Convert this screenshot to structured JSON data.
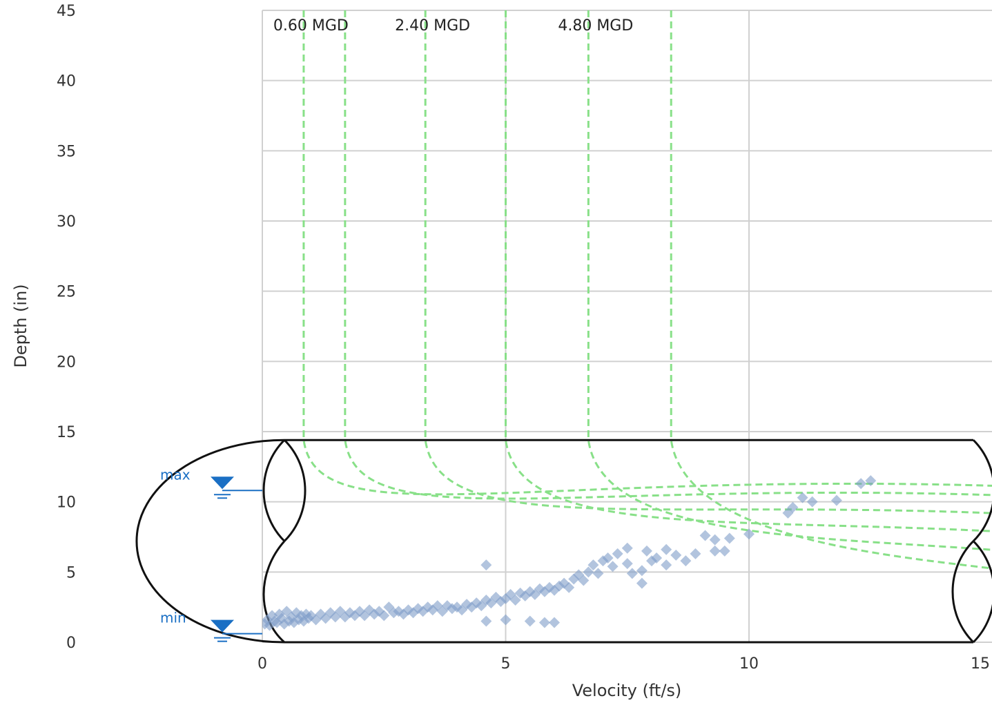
{
  "chart_data": {
    "type": "scatter",
    "title": "",
    "xlabel": "Velocity (ft/s)",
    "ylabel": "Depth (in)",
    "xlim": [
      0,
      15
    ],
    "ylim": [
      0,
      45
    ],
    "x_ticks": [
      "0",
      "5",
      "10",
      "15"
    ],
    "y_ticks": [
      "0",
      "5",
      "10",
      "15",
      "20",
      "25",
      "30",
      "35",
      "40",
      "45"
    ],
    "grid": true,
    "pipe_diameter_in": 14.4,
    "level_markers": [
      {
        "label": "max",
        "depth": 11.2
      },
      {
        "label": "min",
        "depth": 1.0
      }
    ],
    "flow_curves": [
      {
        "x_asymptote": 0.85,
        "label": "0.60 MGD"
      },
      {
        "x_asymptote": 1.7,
        "label": ""
      },
      {
        "x_asymptote": 3.35,
        "label": "2.40 MGD"
      },
      {
        "x_asymptote": 5.0,
        "label": ""
      },
      {
        "x_asymptote": 6.7,
        "label": "4.80 MGD"
      },
      {
        "x_asymptote": 8.4,
        "label": ""
      }
    ],
    "colors": {
      "points": "#7f9cc8",
      "flow_curves": "#88e088",
      "markers": "#1a6fc4",
      "pipe": "#111111",
      "grid": "#d0d0d0"
    },
    "series": [
      {
        "marker": "diamond",
        "points": [
          [
            0.05,
            1.3
          ],
          [
            0.1,
            1.6
          ],
          [
            0.15,
            1.2
          ],
          [
            0.2,
            1.9
          ],
          [
            0.25,
            1.5
          ],
          [
            0.3,
            1.4
          ],
          [
            0.35,
            2.0
          ],
          [
            0.4,
            1.7
          ],
          [
            0.45,
            1.3
          ],
          [
            0.5,
            2.2
          ],
          [
            0.55,
            1.5
          ],
          [
            0.6,
            1.8
          ],
          [
            0.65,
            1.4
          ],
          [
            0.7,
            2.1
          ],
          [
            0.75,
            1.6
          ],
          [
            0.8,
            1.9
          ],
          [
            0.85,
            1.5
          ],
          [
            0.9,
            2.0
          ],
          [
            0.95,
            1.7
          ],
          [
            1.0,
            1.9
          ],
          [
            1.1,
            1.6
          ],
          [
            1.2,
            2.0
          ],
          [
            1.3,
            1.7
          ],
          [
            1.4,
            2.1
          ],
          [
            1.5,
            1.8
          ],
          [
            1.6,
            2.2
          ],
          [
            1.7,
            1.8
          ],
          [
            1.8,
            2.1
          ],
          [
            1.9,
            1.9
          ],
          [
            2.0,
            2.2
          ],
          [
            2.1,
            1.9
          ],
          [
            2.2,
            2.3
          ],
          [
            2.3,
            2.0
          ],
          [
            2.4,
            2.2
          ],
          [
            2.5,
            1.9
          ],
          [
            2.6,
            2.5
          ],
          [
            2.7,
            2.1
          ],
          [
            2.8,
            2.2
          ],
          [
            2.9,
            2.0
          ],
          [
            3.0,
            2.3
          ],
          [
            3.1,
            2.1
          ],
          [
            3.2,
            2.4
          ],
          [
            3.3,
            2.2
          ],
          [
            3.4,
            2.5
          ],
          [
            3.5,
            2.3
          ],
          [
            3.6,
            2.6
          ],
          [
            3.7,
            2.2
          ],
          [
            3.8,
            2.6
          ],
          [
            3.9,
            2.4
          ],
          [
            4.0,
            2.5
          ],
          [
            4.1,
            2.3
          ],
          [
            4.2,
            2.7
          ],
          [
            4.3,
            2.5
          ],
          [
            4.4,
            2.8
          ],
          [
            4.5,
            2.6
          ],
          [
            4.6,
            3.0
          ],
          [
            4.7,
            2.8
          ],
          [
            4.8,
            3.2
          ],
          [
            4.9,
            2.9
          ],
          [
            5.0,
            3.1
          ],
          [
            5.1,
            3.4
          ],
          [
            5.2,
            3.0
          ],
          [
            5.3,
            3.5
          ],
          [
            5.4,
            3.3
          ],
          [
            5.5,
            3.6
          ],
          [
            5.6,
            3.4
          ],
          [
            5.7,
            3.8
          ],
          [
            5.8,
            3.6
          ],
          [
            5.9,
            3.9
          ],
          [
            6.0,
            3.7
          ],
          [
            6.1,
            4.0
          ],
          [
            6.2,
            4.2
          ],
          [
            6.3,
            3.9
          ],
          [
            6.4,
            4.5
          ],
          [
            6.5,
            4.8
          ],
          [
            6.6,
            4.4
          ],
          [
            6.7,
            5.0
          ],
          [
            6.8,
            5.5
          ],
          [
            6.9,
            4.9
          ],
          [
            7.0,
            5.8
          ],
          [
            7.1,
            6.0
          ],
          [
            7.2,
            5.4
          ],
          [
            7.3,
            6.3
          ],
          [
            7.5,
            5.6
          ],
          [
            7.6,
            4.9
          ],
          [
            7.8,
            5.1
          ],
          [
            7.9,
            6.5
          ],
          [
            8.1,
            6.0
          ],
          [
            8.3,
            5.5
          ],
          [
            8.5,
            6.2
          ],
          [
            8.7,
            5.8
          ],
          [
            8.9,
            6.3
          ],
          [
            9.1,
            7.6
          ],
          [
            9.3,
            7.3
          ],
          [
            9.5,
            6.5
          ],
          [
            10.0,
            7.7
          ],
          [
            10.8,
            9.2
          ],
          [
            10.9,
            9.6
          ],
          [
            11.1,
            10.3
          ],
          [
            11.3,
            10.0
          ],
          [
            11.8,
            10.1
          ],
          [
            12.3,
            11.3
          ],
          [
            12.5,
            11.5
          ],
          [
            4.6,
            1.5
          ],
          [
            5.0,
            1.6
          ],
          [
            5.5,
            1.5
          ],
          [
            5.8,
            1.4
          ],
          [
            6.0,
            1.4
          ],
          [
            4.6,
            5.5
          ],
          [
            9.3,
            6.5
          ],
          [
            7.8,
            4.2
          ],
          [
            8.0,
            5.8
          ],
          [
            8.3,
            6.6
          ],
          [
            7.5,
            6.7
          ],
          [
            9.6,
            7.4
          ]
        ]
      }
    ]
  }
}
